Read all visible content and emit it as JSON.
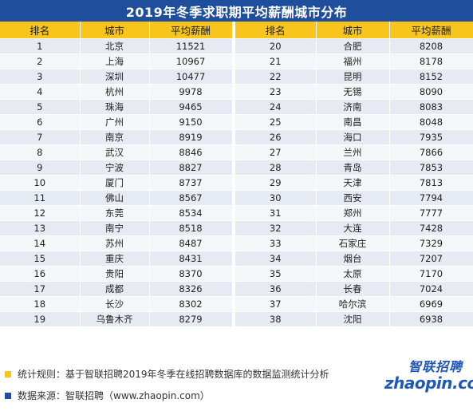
{
  "title": "2019年冬季求职期平均薪酬城市分布",
  "headers": [
    "排名",
    "城市",
    "平均薪酬",
    "排名",
    "城市",
    "平均薪酬"
  ],
  "rows": [
    {
      "left": [
        "1",
        "北京",
        "11521"
      ],
      "right": [
        "20",
        "合肥",
        "8208"
      ]
    },
    {
      "left": [
        "2",
        "上海",
        "10967"
      ],
      "right": [
        "21",
        "福州",
        "8178"
      ]
    },
    {
      "left": [
        "3",
        "深圳",
        "10477"
      ],
      "right": [
        "22",
        "昆明",
        "8152"
      ]
    },
    {
      "left": [
        "4",
        "杭州",
        "9978"
      ],
      "right": [
        "23",
        "无锡",
        "8090"
      ]
    },
    {
      "left": [
        "5",
        "珠海",
        "9465"
      ],
      "right": [
        "24",
        "济南",
        "8083"
      ]
    },
    {
      "left": [
        "6",
        "广州",
        "9150"
      ],
      "right": [
        "25",
        "南昌",
        "8048"
      ]
    },
    {
      "left": [
        "7",
        "南京",
        "8919"
      ],
      "right": [
        "26",
        "海口",
        "7935"
      ]
    },
    {
      "left": [
        "8",
        "武汉",
        "8846"
      ],
      "right": [
        "27",
        "兰州",
        "7866"
      ]
    },
    {
      "left": [
        "9",
        "宁波",
        "8827"
      ],
      "right": [
        "28",
        "青岛",
        "7853"
      ]
    },
    {
      "left": [
        "10",
        "厦门",
        "8737"
      ],
      "right": [
        "29",
        "天津",
        "7813"
      ]
    },
    {
      "left": [
        "11",
        "佛山",
        "8567"
      ],
      "right": [
        "30",
        "西安",
        "7794"
      ]
    },
    {
      "left": [
        "12",
        "东莞",
        "8534"
      ],
      "right": [
        "31",
        "郑州",
        "7777"
      ]
    },
    {
      "left": [
        "13",
        "南宁",
        "8518"
      ],
      "right": [
        "32",
        "大连",
        "7428"
      ]
    },
    {
      "left": [
        "14",
        "苏州",
        "8487"
      ],
      "right": [
        "33",
        "石家庄",
        "7329"
      ]
    },
    {
      "left": [
        "15",
        "重庆",
        "8431"
      ],
      "right": [
        "34",
        "烟台",
        "7207"
      ]
    },
    {
      "left": [
        "16",
        "贵阳",
        "8370"
      ],
      "right": [
        "35",
        "太原",
        "7170"
      ]
    },
    {
      "left": [
        "17",
        "成都",
        "8326"
      ],
      "right": [
        "36",
        "长春",
        "7024"
      ]
    },
    {
      "left": [
        "18",
        "长沙",
        "8302"
      ],
      "right": [
        "37",
        "哈尔滨",
        "6969"
      ]
    },
    {
      "left": [
        "19",
        "乌鲁木齐",
        "8279"
      ],
      "right": [
        "38",
        "沈阳",
        "6938"
      ]
    }
  ],
  "notes": {
    "method": "统计规则：基于智联招聘2019年冬季在线招聘数据库的数据监测统计分析",
    "source": "数据来源：智联招聘（www.zhaopin.com）"
  },
  "logo": {
    "cn": "智联招聘",
    "en": "zhaopin.com"
  },
  "colors": {
    "title_bg": "#1f4e9c",
    "header_bg": "#f7c51c",
    "row_odd": "#e6ebf3",
    "row_even": "#f4f6fa",
    "note_yellow": "#f7c51c",
    "note_blue": "#1f4e9c"
  }
}
